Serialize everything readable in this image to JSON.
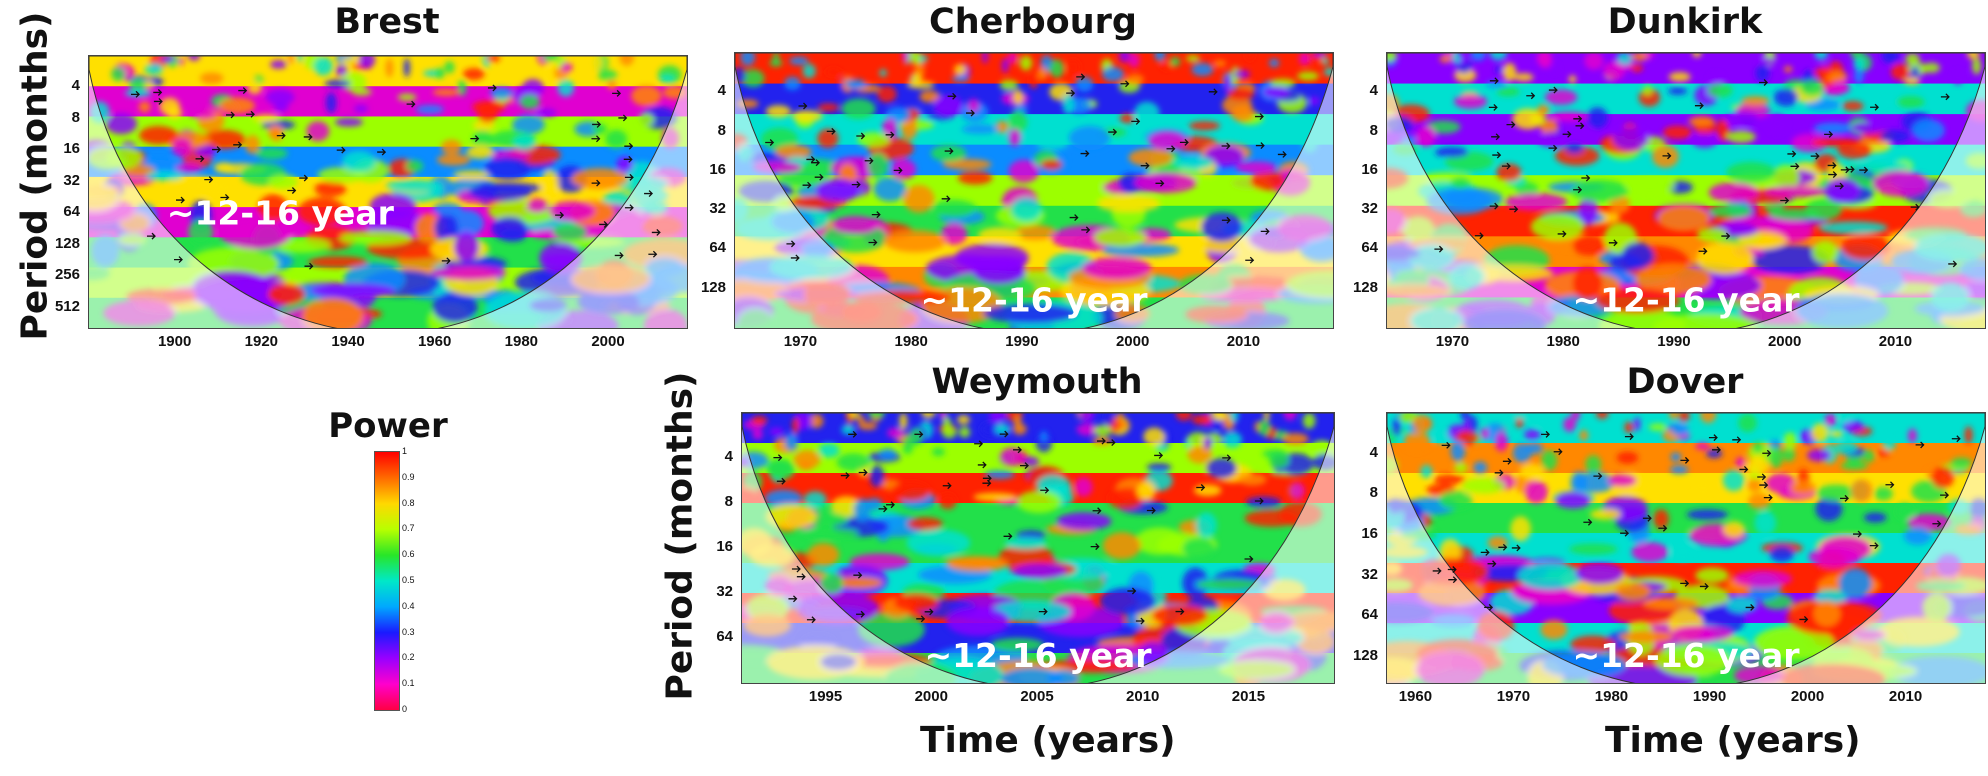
{
  "y_axis_label": "Period (months)",
  "x_axis_label": "Time (years)",
  "colorbar": {
    "title": "Power",
    "ticks": [
      "1",
      "0.9",
      "0.8",
      "0.7",
      "0.6",
      "0.5",
      "0.4",
      "0.3",
      "0.2",
      "0.1",
      "0"
    ],
    "stops": [
      "#ff0000",
      "#ff6a00",
      "#ffd800",
      "#b8ff00",
      "#28e628",
      "#00e8c8",
      "#00a8ff",
      "#1a1aff",
      "#9900ff",
      "#ff00cc",
      "#ff0044"
    ]
  },
  "chart_data": [
    {
      "type": "heatmap",
      "title": "Brest",
      "annotation": "~12-16 year",
      "xlim": [
        1880,
        2018
      ],
      "x_ticks": [
        "1900",
        "1920",
        "1940",
        "1960",
        "1980",
        "2000"
      ],
      "x_tick_values": [
        1900,
        1920,
        1940,
        1960,
        1980,
        2000
      ],
      "y_ticks": [
        "4",
        "8",
        "16",
        "32",
        "64",
        "128",
        "256",
        "512"
      ],
      "y_tick_values": [
        4,
        8,
        16,
        32,
        64,
        128,
        256,
        512
      ],
      "ylim": [
        2,
        800
      ]
    },
    {
      "type": "heatmap",
      "title": "Cherbourg",
      "annotation": "~12-16 year",
      "xlim": [
        1964,
        2018
      ],
      "x_ticks": [
        "1970",
        "1980",
        "1990",
        "2000",
        "2010"
      ],
      "x_tick_values": [
        1970,
        1980,
        1990,
        2000,
        2010
      ],
      "y_ticks": [
        "4",
        "8",
        "16",
        "32",
        "64",
        "128"
      ],
      "y_tick_values": [
        4,
        8,
        16,
        32,
        64,
        128
      ],
      "ylim": [
        2,
        256
      ]
    },
    {
      "type": "heatmap",
      "title": "Dunkirk",
      "annotation": "~12-16 year",
      "xlim": [
        1964,
        2018
      ],
      "x_ticks": [
        "1970",
        "1980",
        "1990",
        "2000",
        "2010"
      ],
      "x_tick_values": [
        1970,
        1980,
        1990,
        2000,
        2010
      ],
      "y_ticks": [
        "4",
        "8",
        "16",
        "32",
        "64",
        "128"
      ],
      "y_tick_values": [
        4,
        8,
        16,
        32,
        64,
        128
      ],
      "ylim": [
        2,
        256
      ]
    },
    {
      "type": "heatmap",
      "title": "Weymouth",
      "annotation": "~12-16 year",
      "xlim": [
        1991,
        2019
      ],
      "x_ticks": [
        "1995",
        "2000",
        "2005",
        "2010",
        "2015"
      ],
      "x_tick_values": [
        1995,
        2000,
        2005,
        2010,
        2015
      ],
      "y_ticks": [
        "4",
        "8",
        "16",
        "32",
        "64"
      ],
      "y_tick_values": [
        4,
        8,
        16,
        32,
        64
      ],
      "ylim": [
        2,
        128
      ]
    },
    {
      "type": "heatmap",
      "title": "Dover",
      "annotation": "~12-16 year",
      "xlim": [
        1957,
        2018
      ],
      "x_ticks": [
        "1960",
        "1970",
        "1980",
        "1990",
        "2000",
        "2010"
      ],
      "x_tick_values": [
        1960,
        1970,
        1980,
        1990,
        2000,
        2010
      ],
      "y_ticks": [
        "4",
        "8",
        "16",
        "32",
        "64",
        "128"
      ],
      "y_tick_values": [
        4,
        8,
        16,
        32,
        64,
        128
      ],
      "ylim": [
        2,
        200
      ]
    }
  ]
}
